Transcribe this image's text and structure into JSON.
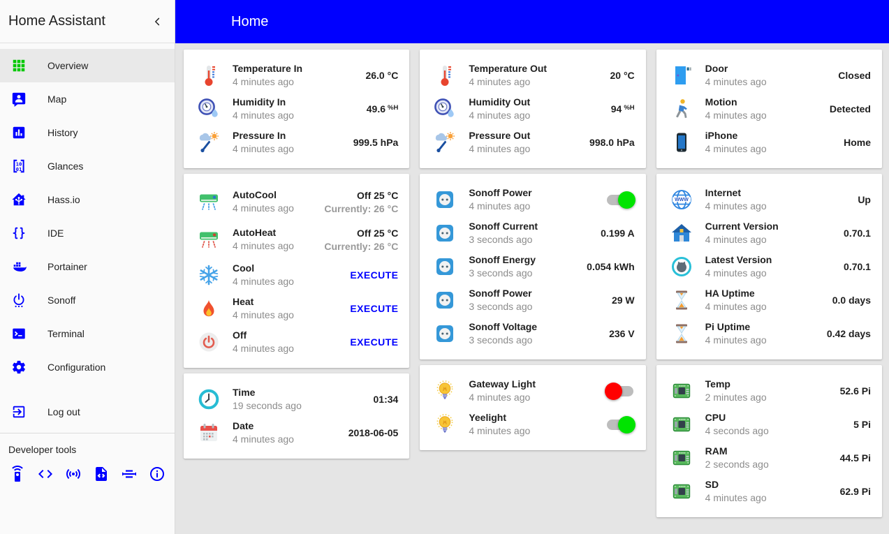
{
  "colors": {
    "accent": "#0000ff",
    "header_background": "#0000ff",
    "toggle_on_knob": "#00e400",
    "toggle_off_knob": "#ff0000",
    "overview_icon_green": "#00c800",
    "execute_link": "#0000ff"
  },
  "header": {
    "title": "Home"
  },
  "sidebar": {
    "title": "Home Assistant",
    "collapse_icon": "chevron-left",
    "items": [
      {
        "label": "Overview",
        "icon": "view-module",
        "active": true
      },
      {
        "label": "Map",
        "icon": "account-location",
        "active": false
      },
      {
        "label": "History",
        "icon": "poll-box",
        "active": false
      },
      {
        "label": "Glances",
        "icon": "matrix",
        "active": false
      },
      {
        "label": "Hass.io",
        "icon": "home-assistant",
        "active": false
      },
      {
        "label": "IDE",
        "icon": "code-braces",
        "active": false
      },
      {
        "label": "Portainer",
        "icon": "docker",
        "active": false
      },
      {
        "label": "Sonoff",
        "icon": "power-settings",
        "active": false
      },
      {
        "label": "Terminal",
        "icon": "console",
        "active": false
      },
      {
        "label": "Configuration",
        "icon": "cog",
        "active": false
      },
      {
        "label": "Log out",
        "icon": "exit-to-app",
        "active": false,
        "spaced": true
      }
    ],
    "dev_tools_label": "Developer tools",
    "dev_icons": [
      {
        "icon": "remote"
      },
      {
        "icon": "code-tags"
      },
      {
        "icon": "access-point"
      },
      {
        "icon": "file-code"
      },
      {
        "icon": "set-center"
      },
      {
        "icon": "information-outline"
      }
    ]
  },
  "columns": [
    {
      "cards": [
        {
          "rows": [
            {
              "icon": "thermometer",
              "name": "Temperature In",
              "time": "4 minutes ago",
              "value": "26.0 °C"
            },
            {
              "icon": "humidity",
              "name": "Humidity In",
              "time": "4 minutes ago",
              "value": "49.6",
              "unit_sup": "%H"
            },
            {
              "icon": "pressure",
              "name": "Pressure In",
              "time": "4 minutes ago",
              "value": "999.5 hPa"
            }
          ]
        },
        {
          "rows": [
            {
              "icon": "ac-cool",
              "name": "AutoCool",
              "time": "4 minutes ago",
              "value": "Off 25 °C",
              "value_sub": "Currently: 26 °C"
            },
            {
              "icon": "ac-heat",
              "name": "AutoHeat",
              "time": "4 minutes ago",
              "value": "Off 25 °C",
              "value_sub": "Currently: 26 °C"
            },
            {
              "icon": "snowflake",
              "name": "Cool",
              "time": "4 minutes ago",
              "action": "EXECUTE"
            },
            {
              "icon": "fire",
              "name": "Heat",
              "time": "4 minutes ago",
              "action": "EXECUTE"
            },
            {
              "icon": "power-off",
              "name": "Off",
              "time": "4 minutes ago",
              "action": "EXECUTE"
            }
          ]
        },
        {
          "rows": [
            {
              "icon": "clock",
              "name": "Time",
              "time": "19 seconds ago",
              "value": "01:34"
            },
            {
              "icon": "calendar",
              "name": "Date",
              "time": "4 minutes ago",
              "value": "2018-06-05"
            }
          ]
        }
      ]
    },
    {
      "cards": [
        {
          "rows": [
            {
              "icon": "thermometer",
              "name": "Temperature Out",
              "time": "4 minutes ago",
              "value": "20 °C"
            },
            {
              "icon": "humidity",
              "name": "Humidity Out",
              "time": "4 minutes ago",
              "value": "94",
              "unit_sup": "%H"
            },
            {
              "icon": "pressure",
              "name": "Pressure Out",
              "time": "4 minutes ago",
              "value": "998.0 hPa"
            }
          ]
        },
        {
          "rows": [
            {
              "icon": "socket",
              "name": "Sonoff Power",
              "time": "4 minutes ago",
              "toggle": {
                "state": "on",
                "color": "#00e400"
              }
            },
            {
              "icon": "socket",
              "name": "Sonoff Current",
              "time": "3 seconds ago",
              "value": "0.199 A"
            },
            {
              "icon": "socket",
              "name": "Sonoff Energy",
              "time": "3 seconds ago",
              "value": "0.054 kWh"
            },
            {
              "icon": "socket",
              "name": "Sonoff Power",
              "time": "3 seconds ago",
              "value": "29 W"
            },
            {
              "icon": "socket",
              "name": "Sonoff Voltage",
              "time": "3 seconds ago",
              "value": "236 V"
            }
          ]
        },
        {
          "rows": [
            {
              "icon": "bulb",
              "name": "Gateway Light",
              "time": "4 minutes ago",
              "toggle": {
                "state": "off",
                "color": "#ff0000"
              }
            },
            {
              "icon": "bulb",
              "name": "Yeelight",
              "time": "4 minutes ago",
              "toggle": {
                "state": "on",
                "color": "#00e400"
              }
            }
          ]
        }
      ]
    },
    {
      "cards": [
        {
          "rows": [
            {
              "icon": "door",
              "name": "Door",
              "time": "4 minutes ago",
              "value": "Closed"
            },
            {
              "icon": "motion",
              "name": "Motion",
              "time": "4 minutes ago",
              "value": "Detected"
            },
            {
              "icon": "smartphone",
              "name": "iPhone",
              "time": "4 minutes ago",
              "value": "Home"
            }
          ]
        },
        {
          "rows": [
            {
              "icon": "globe-www",
              "name": "Internet",
              "time": "4 minutes ago",
              "value": "Up"
            },
            {
              "icon": "house",
              "name": "Current Version",
              "time": "4 minutes ago",
              "value": "0.70.1"
            },
            {
              "icon": "github",
              "name": "Latest Version",
              "time": "4 minutes ago",
              "value": "0.70.1"
            },
            {
              "icon": "hourglass",
              "name": "HA Uptime",
              "time": "4 minutes ago",
              "value": "0.0 days"
            },
            {
              "icon": "hourglass",
              "name": "Pi Uptime",
              "time": "4 minutes ago",
              "value": "0.42 days"
            }
          ]
        },
        {
          "rows": [
            {
              "icon": "circuit-board",
              "name": "Temp",
              "time": "2 minutes ago",
              "value": "52.6 Pi"
            },
            {
              "icon": "circuit-board",
              "name": "CPU",
              "time": "4 seconds ago",
              "value": "5 Pi"
            },
            {
              "icon": "circuit-board",
              "name": "RAM",
              "time": "2 seconds ago",
              "value": "44.5 Pi"
            },
            {
              "icon": "circuit-board",
              "name": "SD",
              "time": "4 minutes ago",
              "value": "62.9 Pi"
            }
          ]
        }
      ]
    }
  ]
}
